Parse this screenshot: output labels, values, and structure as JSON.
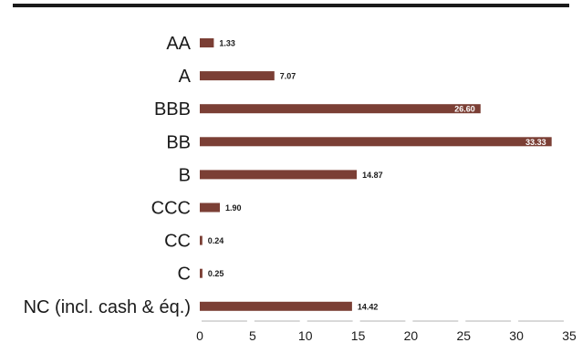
{
  "chart_data": {
    "type": "bar",
    "orientation": "horizontal",
    "categories": [
      "AA",
      "A",
      "BBB",
      "BB",
      "B",
      "CCC",
      "CC",
      "C",
      "NC (incl. cash & éq.)"
    ],
    "values": [
      1.33,
      7.07,
      26.6,
      33.33,
      14.87,
      1.9,
      0.24,
      0.25,
      14.42
    ],
    "value_labels": [
      "1.33",
      "7.07",
      "26.60",
      "33.33",
      "14.87",
      "1.90",
      "0.24",
      "0.25",
      "14.42"
    ],
    "xlim": [
      0,
      35
    ],
    "xticks": [
      "0",
      "5",
      "10",
      "15",
      "20",
      "25",
      "30",
      "35"
    ],
    "grid": false,
    "colors": {
      "bar": "#7b3f35",
      "top_rule": "#1a1a1a",
      "tick_segment": "#b3b3b3",
      "text": "#1a1a1a"
    }
  }
}
